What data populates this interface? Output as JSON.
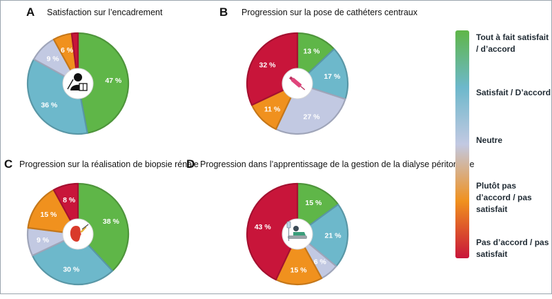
{
  "colors": {
    "tout_a_fait": "#5fb648",
    "satisfait": "#6db8cb",
    "neutre": "#c2c9e2",
    "plutot_pas": "#f0911e",
    "pas_d_accord": "#c8153a"
  },
  "legend": [
    {
      "label": "Tout à fait satisfait / d’accord",
      "color": "#5fb648"
    },
    {
      "label": "Satisfait / D’accord",
      "color": "#6db8cb"
    },
    {
      "label": "Neutre",
      "color": "#c2c9e2"
    },
    {
      "label": "Plutôt pas d’accord / pas satisfait",
      "color": "#f0911e"
    },
    {
      "label": "Pas d’accord / pas satisfait",
      "color": "#c8153a"
    }
  ],
  "panels": [
    {
      "letter": "A",
      "title": "Satisfaction sur l’encadrement",
      "icon": "teacher-icon"
    },
    {
      "letter": "B",
      "title": "Progression sur la pose de cathéters centraux",
      "icon": "syringe-icon"
    },
    {
      "letter": "C",
      "title": "Progression sur la réalisation de biopsie rénale",
      "icon": "kidney-icon"
    },
    {
      "letter": "D",
      "title": "Progression dans l’apprentissage de la gestion de la dialyse péritonéale",
      "icon": "dialysis-patient-icon"
    }
  ],
  "chart_data": [
    {
      "type": "pie",
      "title": "Satisfaction sur l’encadrement",
      "categories": [
        "Tout à fait satisfait / d’accord",
        "Satisfait / D’accord",
        "Neutre",
        "Plutôt pas d’accord / pas satisfait",
        "Pas d’accord / pas satisfait"
      ],
      "values": [
        47,
        36,
        9,
        6,
        2
      ],
      "labels": [
        "47 %",
        "36 %",
        "9 %",
        "6 %",
        ""
      ]
    },
    {
      "type": "pie",
      "title": "Progression sur la pose de cathéters centraux",
      "categories": [
        "Tout à fait satisfait / d’accord",
        "Satisfait / D’accord",
        "Neutre",
        "Plutôt pas d’accord / pas satisfait",
        "Pas d’accord / pas satisfait"
      ],
      "values": [
        13,
        17,
        27,
        11,
        32
      ],
      "labels": [
        "13 %",
        "17 %",
        "27 %",
        "11 %",
        "32 %"
      ]
    },
    {
      "type": "pie",
      "title": "Progression sur la réalisation de biopsie rénale",
      "categories": [
        "Tout à fait satisfait / d’accord",
        "Satisfait / D’accord",
        "Neutre",
        "Plutôt pas d’accord / pas satisfait",
        "Pas d’accord / pas satisfait"
      ],
      "values": [
        38,
        30,
        9,
        15,
        8
      ],
      "labels": [
        "38 %",
        "30 %",
        "9 %",
        "15 %",
        "8 %"
      ]
    },
    {
      "type": "pie",
      "title": "Progression dans l’apprentissage de la gestion de la dialyse péritonéale",
      "categories": [
        "Tout à fait satisfait / d’accord",
        "Satisfait / D’accord",
        "Neutre",
        "Plutôt pas d’accord / pas satisfait",
        "Pas d’accord / pas satisfait"
      ],
      "values": [
        15,
        21,
        6,
        15,
        43
      ],
      "labels": [
        "15 %",
        "21 %",
        "6 %",
        "15 %",
        "43 %"
      ]
    }
  ]
}
